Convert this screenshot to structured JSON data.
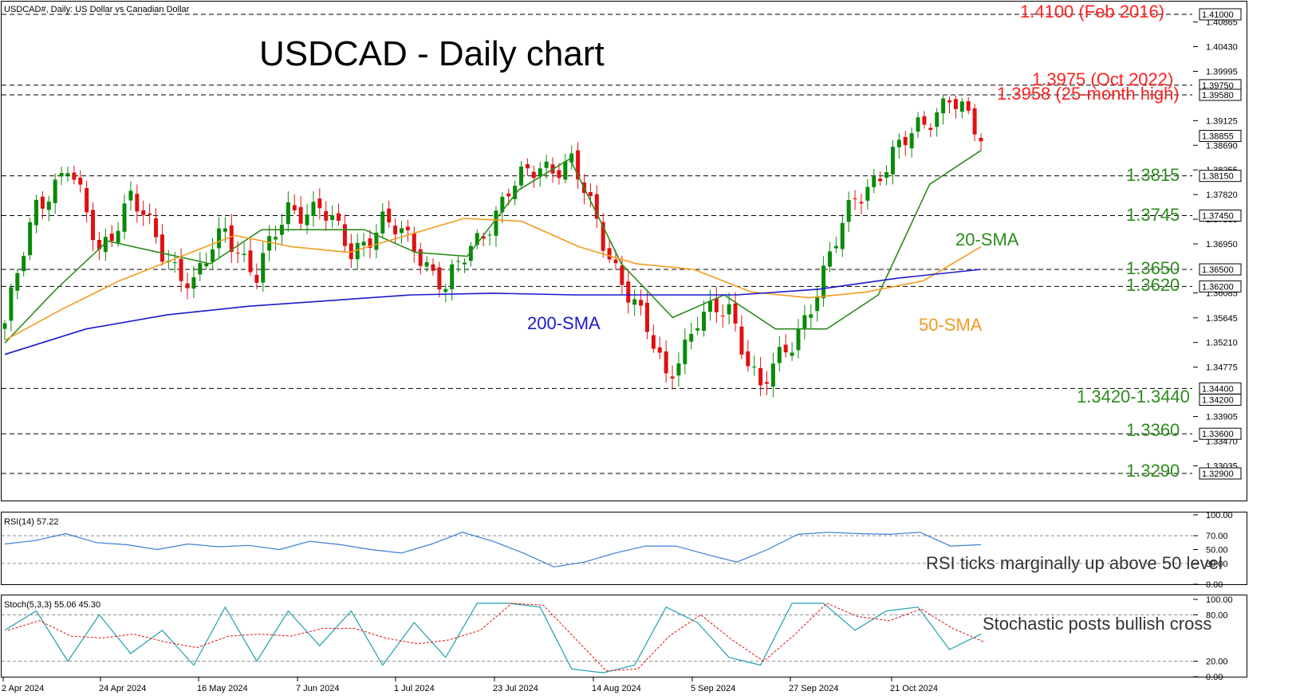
{
  "header": {
    "symbol_info": "USDCAD#, Daily:  US Dollar vs Canadian Dollar",
    "title": "USDCAD - Daily chart"
  },
  "colors": {
    "bull": "#0a8a0a",
    "bear": "#e01010",
    "sma20": "#2e8b1e",
    "sma50": "#f39c1f",
    "sma200": "#1a1acc",
    "rsi": "#3b7fd4",
    "stoch_main": "#20a0b0",
    "stoch_signal": "#e01010",
    "green_text": "#2e8b1e",
    "red_text": "#ff2020"
  },
  "price_axis": {
    "ticks": [
      "1.40865",
      "1.40430",
      "1.39995",
      "1.39125",
      "1.38690",
      "1.38255",
      "1.37820",
      "1.37385",
      "1.36950",
      "1.36085",
      "1.35645",
      "1.35210",
      "1.34775",
      "1.33905",
      "1.33470",
      "1.33035"
    ],
    "boxed": [
      "1.41000",
      "1.39750",
      "1.39580",
      "1.38855",
      "1.38150",
      "1.37450",
      "1.36500",
      "1.36200",
      "1.34400",
      "1.34200",
      "1.33600",
      "1.32900"
    ]
  },
  "levels": [
    {
      "label": "1.4100 (Feb 2016)",
      "value": 1.41,
      "color": "red"
    },
    {
      "label": "1.3975 (Oct 2022)",
      "value": 1.3975,
      "color": "red"
    },
    {
      "label": "1.3958 (25-month high)",
      "value": 1.3958,
      "color": "red"
    },
    {
      "label": "1.3815",
      "value": 1.3815,
      "color": "green"
    },
    {
      "label": "1.3745",
      "value": 1.3745,
      "color": "green"
    },
    {
      "label": "1.3650",
      "value": 1.365,
      "color": "green"
    },
    {
      "label": "1.3620",
      "value": 1.362,
      "color": "green"
    },
    {
      "label": "1.3420-1.3440",
      "value": 1.344,
      "color": "green"
    },
    {
      "label": "1.3360",
      "value": 1.336,
      "color": "green"
    },
    {
      "label": "1.3290",
      "value": 1.329,
      "color": "green"
    }
  ],
  "ma_labels": {
    "sma20": "20-SMA",
    "sma50": "50-SMA",
    "sma200": "200-SMA"
  },
  "x_axis": {
    "labels": [
      "2 Apr 2024",
      "24 Apr 2024",
      "16 May 2024",
      "7 Jun 2024",
      "1 Jul 2024",
      "23 Jul 2024",
      "14 Aug 2024",
      "5 Sep 2024",
      "27 Sep 2024",
      "21 Oct 2024"
    ]
  },
  "rsi": {
    "header": "RSI(14) 57.22",
    "ticks": [
      "100.00",
      "70.00",
      "50.00",
      "30.00",
      "0.00"
    ],
    "note": "RSI ticks marginally up above 50 level"
  },
  "stoch": {
    "header": "Stoch(5,3,3) 55.06 45.30",
    "ticks": [
      "100.00",
      "80.00",
      "20.00",
      "0.00"
    ],
    "note": "Stochastic posts bullish cross"
  },
  "chart_data": {
    "type": "candlestick",
    "title": "USDCAD - Daily chart",
    "period": "Daily",
    "x_range": [
      "2 Apr 2024",
      "5 Nov 2024"
    ],
    "ylim": [
      1.3265,
      1.412
    ],
    "last_price": 1.38855,
    "close_points": [
      {
        "date": "2 Apr 2024",
        "close": 1.3555
      },
      {
        "date": "12 Apr 2024",
        "close": 1.376
      },
      {
        "date": "16 Apr 2024",
        "close": 1.3835
      },
      {
        "date": "24 Apr 2024",
        "close": 1.368
      },
      {
        "date": "30 Apr 2024",
        "close": 1.378
      },
      {
        "date": "10 May 2024",
        "close": 1.368
      },
      {
        "date": "16 May 2024",
        "close": 1.3625
      },
      {
        "date": "22 May 2024",
        "close": 1.372
      },
      {
        "date": "30 May 2024",
        "close": 1.364
      },
      {
        "date": "7 Jun 2024",
        "close": 1.3755
      },
      {
        "date": "11 Jun 2024",
        "close": 1.376
      },
      {
        "date": "20 Jun 2024",
        "close": 1.368
      },
      {
        "date": "27 Jun 2024",
        "close": 1.3735
      },
      {
        "date": "1 Jul 2024",
        "close": 1.369
      },
      {
        "date": "9 Jul 2024",
        "close": 1.362
      },
      {
        "date": "16 Jul 2024",
        "close": 1.37
      },
      {
        "date": "23 Jul 2024",
        "close": 1.379
      },
      {
        "date": "31 Jul 2024",
        "close": 1.383
      },
      {
        "date": "5 Aug 2024",
        "close": 1.384
      },
      {
        "date": "14 Aug 2024",
        "close": 1.37
      },
      {
        "date": "21 Aug 2024",
        "close": 1.359
      },
      {
        "date": "26 Aug 2024",
        "close": 1.346
      },
      {
        "date": "5 Sep 2024",
        "close": 1.356
      },
      {
        "date": "16 Sep 2024",
        "close": 1.358
      },
      {
        "date": "20 Sep 2024",
        "close": 1.344
      },
      {
        "date": "27 Sep 2024",
        "close": 1.352
      },
      {
        "date": "4 Oct 2024",
        "close": 1.364
      },
      {
        "date": "10 Oct 2024",
        "close": 1.378
      },
      {
        "date": "21 Oct 2024",
        "close": 1.383
      },
      {
        "date": "28 Oct 2024",
        "close": 1.3905
      },
      {
        "date": "31 Oct 2024",
        "close": 1.395
      },
      {
        "date": "5 Nov 2024",
        "close": 1.3885
      }
    ],
    "series": [
      {
        "name": "20-SMA",
        "values": [
          1.352,
          1.3615,
          1.37,
          1.368,
          1.366,
          1.372,
          1.372,
          1.372,
          1.368,
          1.3673,
          1.379,
          1.3845,
          1.366,
          1.3565,
          1.3605,
          1.3545,
          1.3545,
          1.3605,
          1.38,
          1.386
        ]
      },
      {
        "name": "50-SMA",
        "values": [
          1.3525,
          1.358,
          1.363,
          1.367,
          1.371,
          1.369,
          1.368,
          1.371,
          1.374,
          1.3735,
          1.369,
          1.366,
          1.365,
          1.361,
          1.36,
          1.361,
          1.363,
          1.369
        ]
      },
      {
        "name": "200-SMA",
        "values": [
          1.35,
          1.3545,
          1.357,
          1.3585,
          1.3595,
          1.3605,
          1.3608,
          1.3605,
          1.3605,
          1.3605,
          1.3615,
          1.3635,
          1.365
        ]
      }
    ],
    "rsi_14": {
      "last": 57.22,
      "values": [
        58,
        63,
        73,
        60,
        57,
        50,
        58,
        54,
        56,
        50,
        62,
        57,
        50,
        45,
        58,
        75,
        62,
        45,
        25,
        32,
        45,
        55,
        55,
        43,
        32,
        50,
        72,
        75,
        73,
        72,
        75,
        55,
        57
      ]
    },
    "stochastic_5_3_3": {
      "main_last": 55.06,
      "signal_last": 45.3,
      "values": [
        60,
        85,
        20,
        80,
        30,
        60,
        15,
        90,
        20,
        85,
        40,
        85,
        15,
        70,
        25,
        95,
        95,
        90,
        10,
        5,
        15,
        90,
        70,
        25,
        15,
        95,
        95,
        60,
        85,
        90,
        35,
        55
      ]
    }
  }
}
